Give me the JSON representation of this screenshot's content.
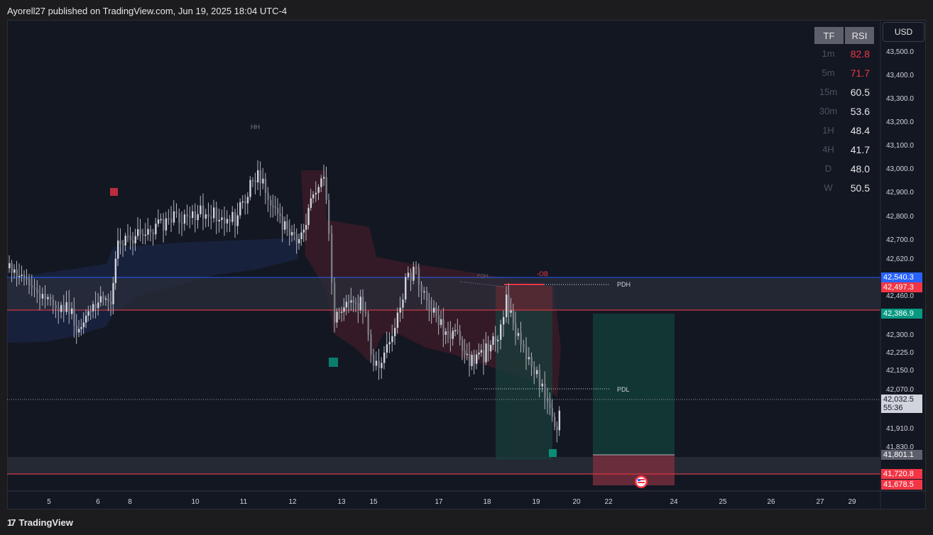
{
  "header": {
    "published_text": "Ayorell27 published on TradingView.com, Jun 19, 2025 18:04 UTC-4"
  },
  "footer": {
    "brand": "TradingView",
    "logo_glyph": "17"
  },
  "currency_button": "USD",
  "price_axis": {
    "ticks": [
      "43,500.0",
      "43,400.0",
      "43,300.0",
      "43,200.0",
      "43,100.0",
      "43,000.0",
      "42,900.0",
      "42,800.0",
      "42,700.0",
      "42,620.0",
      "42,460.0",
      "42,300.0",
      "42,225.0",
      "42,150.0",
      "42,070.0",
      "41,910.0",
      "41,830.0"
    ],
    "labels": [
      {
        "text": "42,540.3",
        "color": "#2962ff"
      },
      {
        "text": "42,497.3",
        "color": "#f23645"
      },
      {
        "text": "42,386.9",
        "color": "#089981"
      },
      {
        "text": "42,032.5",
        "color": "#9598a1"
      },
      {
        "text": "55:36",
        "color": "#9598a1"
      },
      {
        "text": "41,801.1",
        "color": "#5d606b"
      },
      {
        "text": "41,720.8",
        "color": "#f23645"
      },
      {
        "text": "41,678.5",
        "color": "#f23645"
      }
    ]
  },
  "time_axis": {
    "ticks": [
      "5",
      "6",
      "8",
      "10",
      "11",
      "12",
      "13",
      "15",
      "17",
      "18",
      "19",
      "20",
      "22",
      "24",
      "25",
      "26",
      "27",
      "29"
    ]
  },
  "rsi_table": {
    "headers": [
      "TF",
      "RSI"
    ],
    "rows": [
      {
        "tf": "1m",
        "rsi": "82.8",
        "color": "#f23645"
      },
      {
        "tf": "5m",
        "rsi": "71.7",
        "color": "#f23645"
      },
      {
        "tf": "15m",
        "rsi": "60.5",
        "color": "#e6e6e6"
      },
      {
        "tf": "30m",
        "rsi": "53.6",
        "color": "#e6e6e6"
      },
      {
        "tf": "1H",
        "rsi": "48.4",
        "color": "#e6e6e6"
      },
      {
        "tf": "4H",
        "rsi": "41.7",
        "color": "#e6e6e6"
      },
      {
        "tf": "D",
        "rsi": "48.0",
        "color": "#e6e6e6"
      },
      {
        "tf": "W",
        "rsi": "50.5",
        "color": "#e6e6e6"
      }
    ]
  },
  "annotations": {
    "hh": "HH",
    "eqh": "EQH",
    "ob": "-OB",
    "pdh": "PDH",
    "pdl": "PDL"
  },
  "event_icon": "us-flag-icon",
  "colors": {
    "bull": "#089981",
    "bear": "#f23645",
    "blue_line": "#2962ff",
    "candle": "#b2b5be"
  }
}
